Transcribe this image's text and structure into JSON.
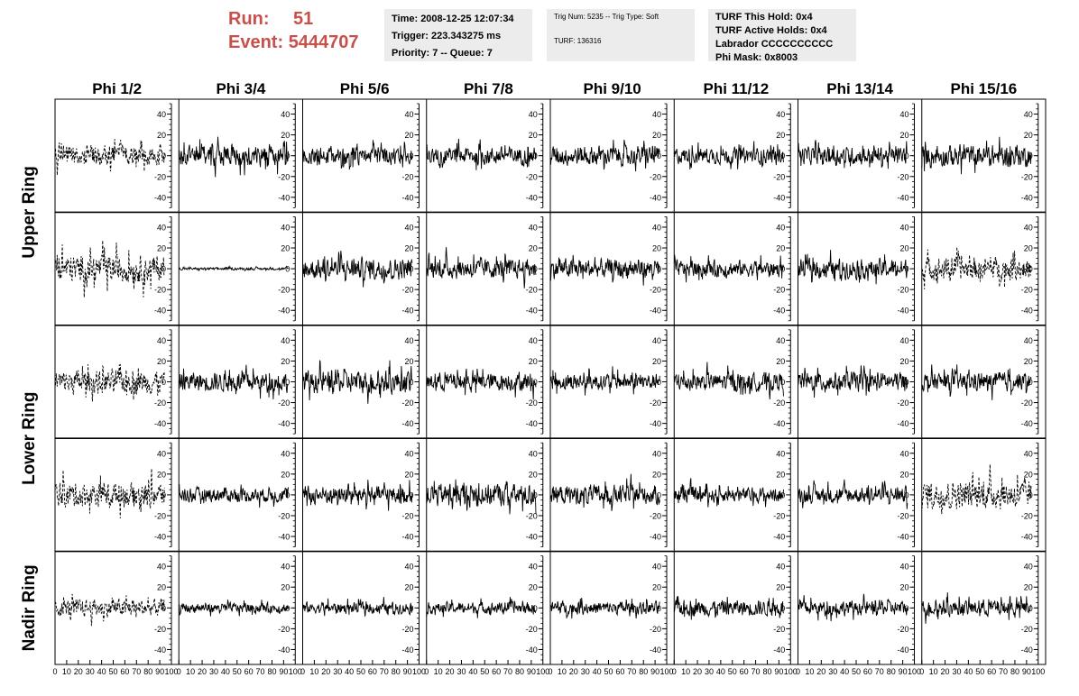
{
  "header": {
    "run_label": "Run:",
    "run_value": "51",
    "event_label": "Event:",
    "event_value": "5444707"
  },
  "info": {
    "time": "Time: 2008-12-25 12:07:34",
    "trigger": "Trigger: 223.343275 ms",
    "priority": "Priority: 7 -- Queue: 7",
    "trig_num": "Trig Num: 5235 -- Trig Type: Soft",
    "turf": "TURF: 136316",
    "turf_this_hold": "TURF This Hold: 0x4",
    "turf_active_holds": "TURF Active Holds: 0x4",
    "labrador": "Labrador CCCCCCCCCC",
    "phi_mask": "Phi Mask: 0x8003"
  },
  "colors": {
    "header_red": "#c9504a",
    "info_bg": "#ececec",
    "trace": "#000000"
  },
  "chart_data": {
    "type": "line",
    "layout": "grid of waveform panels, 5 rows x 8 columns",
    "columns": [
      "Phi 1/2",
      "Phi 3/4",
      "Phi 5/6",
      "Phi 7/8",
      "Phi 9/10",
      "Phi 11/12",
      "Phi 13/14",
      "Phi 15/16"
    ],
    "row_labels": [
      {
        "label": "Upper Ring",
        "rows": [
          0,
          1
        ]
      },
      {
        "label": "Lower Ring",
        "rows": [
          2,
          3
        ]
      },
      {
        "label": "Nadir Ring",
        "rows": [
          4
        ]
      }
    ],
    "xlim": [
      0,
      100
    ],
    "ylim": [
      -50,
      50
    ],
    "x_ticks": [
      0,
      10,
      20,
      30,
      40,
      50,
      60,
      70,
      80,
      90,
      100
    ],
    "x_tick_labels": [
      "0",
      "10",
      "20",
      "30",
      "40",
      "50",
      "60",
      "70",
      "80",
      "90",
      "100"
    ],
    "y_ticks": [
      -40,
      -20,
      0,
      20,
      40
    ],
    "y_tick_labels": [
      "-40",
      "-20",
      "0",
      "20",
      "40"
    ],
    "samples_per_trace": 256,
    "trace_style_note": "dashed traces mark masked channels",
    "panels": [
      {
        "row": 0,
        "col": 0,
        "amp": 13,
        "style": "dashed"
      },
      {
        "row": 0,
        "col": 1,
        "amp": 13,
        "style": "solid"
      },
      {
        "row": 0,
        "col": 2,
        "amp": 11,
        "style": "solid"
      },
      {
        "row": 0,
        "col": 3,
        "amp": 11,
        "style": "solid"
      },
      {
        "row": 0,
        "col": 4,
        "amp": 12,
        "style": "solid"
      },
      {
        "row": 0,
        "col": 5,
        "amp": 10,
        "style": "solid"
      },
      {
        "row": 0,
        "col": 6,
        "amp": 11,
        "style": "solid"
      },
      {
        "row": 0,
        "col": 7,
        "amp": 13,
        "style": "solid"
      },
      {
        "row": 1,
        "col": 0,
        "amp": 17,
        "style": "dashed"
      },
      {
        "row": 1,
        "col": 1,
        "amp": 1.5,
        "style": "solid"
      },
      {
        "row": 1,
        "col": 2,
        "amp": 13,
        "style": "solid"
      },
      {
        "row": 1,
        "col": 3,
        "amp": 12,
        "style": "solid"
      },
      {
        "row": 1,
        "col": 4,
        "amp": 12,
        "style": "solid"
      },
      {
        "row": 1,
        "col": 5,
        "amp": 10,
        "style": "solid"
      },
      {
        "row": 1,
        "col": 6,
        "amp": 12,
        "style": "solid"
      },
      {
        "row": 1,
        "col": 7,
        "amp": 14,
        "style": "dashed"
      },
      {
        "row": 2,
        "col": 0,
        "amp": 15,
        "style": "dashed"
      },
      {
        "row": 2,
        "col": 1,
        "amp": 12,
        "style": "solid"
      },
      {
        "row": 2,
        "col": 2,
        "amp": 14,
        "style": "solid"
      },
      {
        "row": 2,
        "col": 3,
        "amp": 11,
        "style": "solid"
      },
      {
        "row": 2,
        "col": 4,
        "amp": 10,
        "style": "solid"
      },
      {
        "row": 2,
        "col": 5,
        "amp": 11,
        "style": "solid"
      },
      {
        "row": 2,
        "col": 6,
        "amp": 12,
        "style": "solid"
      },
      {
        "row": 2,
        "col": 7,
        "amp": 11,
        "style": "solid"
      },
      {
        "row": 3,
        "col": 0,
        "amp": 15,
        "style": "dashed"
      },
      {
        "row": 3,
        "col": 1,
        "amp": 9,
        "style": "solid"
      },
      {
        "row": 3,
        "col": 2,
        "amp": 11,
        "style": "solid"
      },
      {
        "row": 3,
        "col": 3,
        "amp": 14,
        "style": "solid"
      },
      {
        "row": 3,
        "col": 4,
        "amp": 12,
        "style": "solid"
      },
      {
        "row": 3,
        "col": 5,
        "amp": 9,
        "style": "solid"
      },
      {
        "row": 3,
        "col": 6,
        "amp": 10,
        "style": "solid"
      },
      {
        "row": 3,
        "col": 7,
        "amp": 17,
        "style": "dashed"
      },
      {
        "row": 4,
        "col": 0,
        "amp": 11,
        "style": "dashed"
      },
      {
        "row": 4,
        "col": 1,
        "amp": 6,
        "style": "solid"
      },
      {
        "row": 4,
        "col": 2,
        "amp": 7,
        "style": "solid"
      },
      {
        "row": 4,
        "col": 3,
        "amp": 7,
        "style": "solid"
      },
      {
        "row": 4,
        "col": 4,
        "amp": 8,
        "style": "solid"
      },
      {
        "row": 4,
        "col": 5,
        "amp": 10,
        "style": "solid"
      },
      {
        "row": 4,
        "col": 6,
        "amp": 9,
        "style": "solid"
      },
      {
        "row": 4,
        "col": 7,
        "amp": 10,
        "style": "solid"
      }
    ]
  }
}
